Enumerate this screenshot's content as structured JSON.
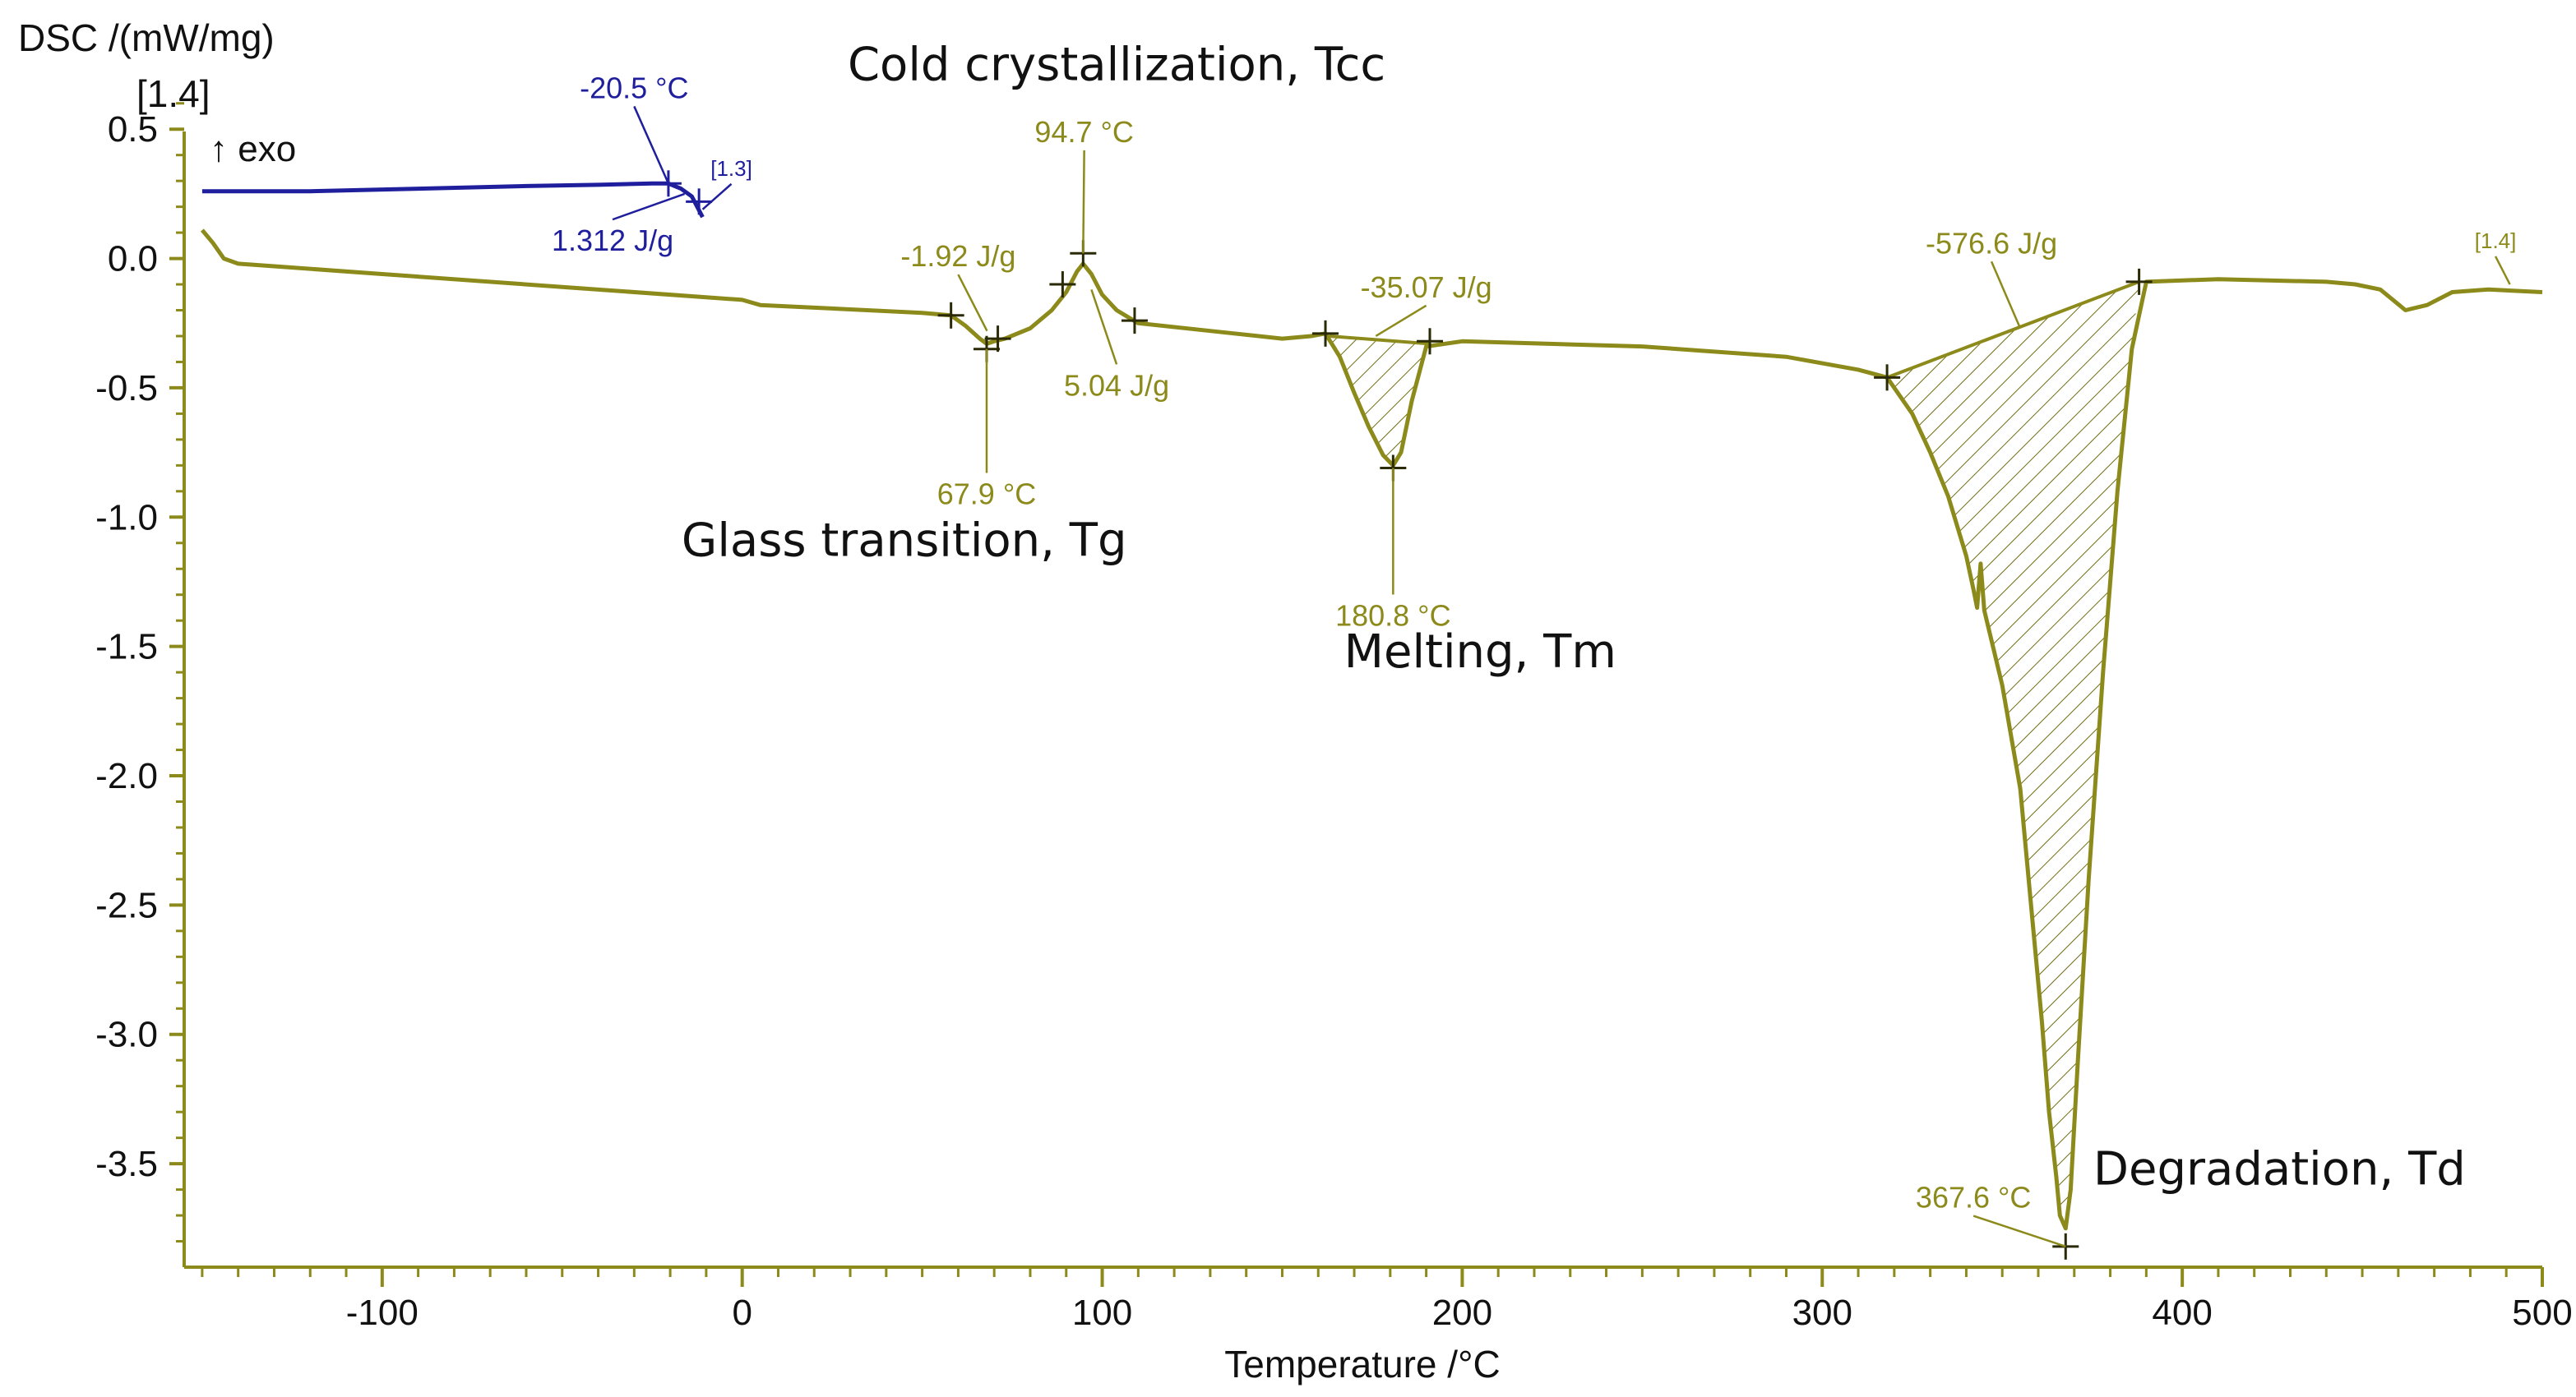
{
  "chart_data": {
    "type": "line",
    "title": "",
    "xlabel": "Temperature /°C",
    "ylabel": "DSC /(mW/mg)",
    "ylabel_tag": "[1.4]",
    "exo_label": "↑ exo",
    "xlim": [
      -155,
      500
    ],
    "ylim": [
      -3.9,
      0.65
    ],
    "xticks": [
      -100,
      0,
      100,
      200,
      300,
      400,
      500
    ],
    "xtick_labels": [
      "-100",
      "0",
      "100",
      "200",
      "300",
      "400",
      "500"
    ],
    "yticks": [
      0.5,
      0.0,
      -0.5,
      -1.0,
      -1.5,
      -2.0,
      -2.5,
      -3.0,
      -3.5
    ],
    "ytick_labels": [
      "0.5",
      "0.0",
      "-0.5",
      "-1.0",
      "-1.5",
      "-2.0",
      "-2.5",
      "-3.0",
      "-3.5"
    ],
    "colors": {
      "olive": "#8c8a1a",
      "blue": "#1f1f9e",
      "axis": "#8c8a1a"
    },
    "series": [
      {
        "name": "[1.3]",
        "color": "#1f1f9e",
        "x": [
          -150,
          -120,
          -90,
          -60,
          -40,
          -25,
          -20.5,
          -17,
          -14,
          -11
        ],
        "y": [
          0.26,
          0.26,
          0.27,
          0.28,
          0.285,
          0.29,
          0.29,
          0.27,
          0.24,
          0.16
        ]
      },
      {
        "name": "[1.4]",
        "color": "#8c8a1a",
        "x": [
          -150,
          -147,
          -144,
          -140,
          -130,
          -100,
          -50,
          0,
          5,
          50,
          58,
          62,
          66,
          67.9,
          70,
          73,
          80,
          86,
          90,
          93,
          94.7,
          97,
          100,
          104,
          110,
          130,
          150,
          158,
          162,
          166,
          170,
          174,
          178,
          180.8,
          183,
          186,
          190,
          200,
          250,
          290,
          310,
          318,
          325,
          330,
          335,
          340,
          342,
          343,
          344,
          345,
          350,
          355,
          358,
          361,
          363,
          365,
          366,
          367.6,
          369,
          371,
          374,
          378,
          382,
          386,
          390,
          410,
          440,
          448,
          455,
          462,
          468,
          475,
          485,
          500
        ],
        "y": [
          0.11,
          0.06,
          0.0,
          -0.02,
          -0.03,
          -0.06,
          -0.11,
          -0.16,
          -0.18,
          -0.21,
          -0.22,
          -0.26,
          -0.31,
          -0.33,
          -0.32,
          -0.31,
          -0.27,
          -0.2,
          -0.13,
          -0.05,
          -0.02,
          -0.06,
          -0.14,
          -0.2,
          -0.25,
          -0.28,
          -0.31,
          -0.3,
          -0.29,
          -0.38,
          -0.52,
          -0.65,
          -0.76,
          -0.8,
          -0.75,
          -0.55,
          -0.34,
          -0.32,
          -0.34,
          -0.38,
          -0.43,
          -0.46,
          -0.6,
          -0.75,
          -0.92,
          -1.15,
          -1.28,
          -1.35,
          -1.18,
          -1.36,
          -1.65,
          -2.05,
          -2.5,
          -2.95,
          -3.3,
          -3.55,
          -3.7,
          -3.75,
          -3.6,
          -3.1,
          -2.4,
          -1.6,
          -0.9,
          -0.35,
          -0.09,
          -0.08,
          -0.09,
          -0.1,
          -0.12,
          -0.2,
          -0.18,
          -0.13,
          -0.12,
          -0.13
        ]
      }
    ],
    "hatched_regions": [
      {
        "name": "melting",
        "x_start": 163,
        "x_end": 191,
        "y_start": -0.3,
        "y_end": -0.33
      },
      {
        "name": "degradation",
        "x_start": 318,
        "x_end": 388,
        "y_start": -0.46,
        "y_end": -0.09
      }
    ],
    "markers": [
      {
        "series": "[1.3]",
        "x": -20.5,
        "y": 0.29
      },
      {
        "series": "[1.3]",
        "x": -12,
        "y": 0.22
      },
      {
        "series": "[1.4]",
        "x": 58,
        "y": -0.22
      },
      {
        "series": "[1.4]",
        "x": 67.9,
        "y": -0.35
      },
      {
        "series": "[1.4]",
        "x": 71,
        "y": -0.31
      },
      {
        "series": "[1.4]",
        "x": 89,
        "y": -0.1
      },
      {
        "series": "[1.4]",
        "x": 94.7,
        "y": 0.02
      },
      {
        "series": "[1.4]",
        "x": 109,
        "y": -0.24
      },
      {
        "series": "[1.4]",
        "x": 162,
        "y": -0.29
      },
      {
        "series": "[1.4]",
        "x": 180.8,
        "y": -0.81
      },
      {
        "series": "[1.4]",
        "x": 191,
        "y": -0.32
      },
      {
        "series": "[1.4]",
        "x": 318,
        "y": -0.46
      },
      {
        "series": "[1.4]",
        "x": 388,
        "y": -0.09
      },
      {
        "series": "[1.4]",
        "x": 367.6,
        "y": -3.82
      }
    ],
    "annotations": [
      {
        "text": "-20.5 °C",
        "color": "blue",
        "anchor_x": -20.5,
        "anchor_y": 0.29,
        "label_x": -30,
        "label_y": 0.62
      },
      {
        "text": "1.312 J/g",
        "color": "blue",
        "anchor_x": -16,
        "anchor_y": 0.25,
        "label_x": -36,
        "label_y": 0.03
      },
      {
        "text": "[1.3]",
        "color": "blue",
        "small": true,
        "anchor_x": -11,
        "anchor_y": 0.19,
        "label_x": -3,
        "label_y": 0.32
      },
      {
        "text": "94.7 °C",
        "color": "olive",
        "anchor_x": 94.7,
        "anchor_y": 0.02,
        "label_x": 95,
        "label_y": 0.45
      },
      {
        "text": "-1.92 J/g",
        "color": "olive",
        "anchor_x": 68,
        "anchor_y": -0.28,
        "label_x": 60,
        "label_y": -0.03
      },
      {
        "text": "5.04 J/g",
        "color": "olive",
        "anchor_x": 97,
        "anchor_y": -0.12,
        "label_x": 104,
        "label_y": -0.53
      },
      {
        "text": "67.9 °C",
        "color": "olive",
        "anchor_x": 67.9,
        "anchor_y": -0.35,
        "label_x": 67.9,
        "label_y": -0.95
      },
      {
        "text": "-35.07 J/g",
        "color": "olive",
        "anchor_x": 176,
        "anchor_y": -0.3,
        "label_x": 190,
        "label_y": -0.15
      },
      {
        "text": "180.8 °C",
        "color": "olive",
        "anchor_x": 180.8,
        "anchor_y": -0.81,
        "label_x": 180.8,
        "label_y": -1.42
      },
      {
        "text": "-576.6 J/g",
        "color": "olive",
        "anchor_x": 355,
        "anchor_y": -0.27,
        "label_x": 347,
        "label_y": 0.02
      },
      {
        "text": "367.6 °C",
        "color": "olive",
        "anchor_x": 367.6,
        "anchor_y": -3.82,
        "label_x": 342,
        "label_y": -3.67
      },
      {
        "text": "[1.4]",
        "color": "olive",
        "small": true,
        "anchor_x": 491,
        "anchor_y": -0.1,
        "label_x": 487,
        "label_y": 0.04
      }
    ],
    "event_labels": [
      {
        "text": "Cold crystallization, Tcc",
        "x": 104,
        "y": 0.69
      },
      {
        "text": "Glass transition, Tg",
        "x": 45,
        "y": -1.15
      },
      {
        "text": "Melting, Tm",
        "x": 205,
        "y": -1.58
      },
      {
        "text": "Degradation, Td",
        "x": 427,
        "y": -3.58
      }
    ]
  }
}
